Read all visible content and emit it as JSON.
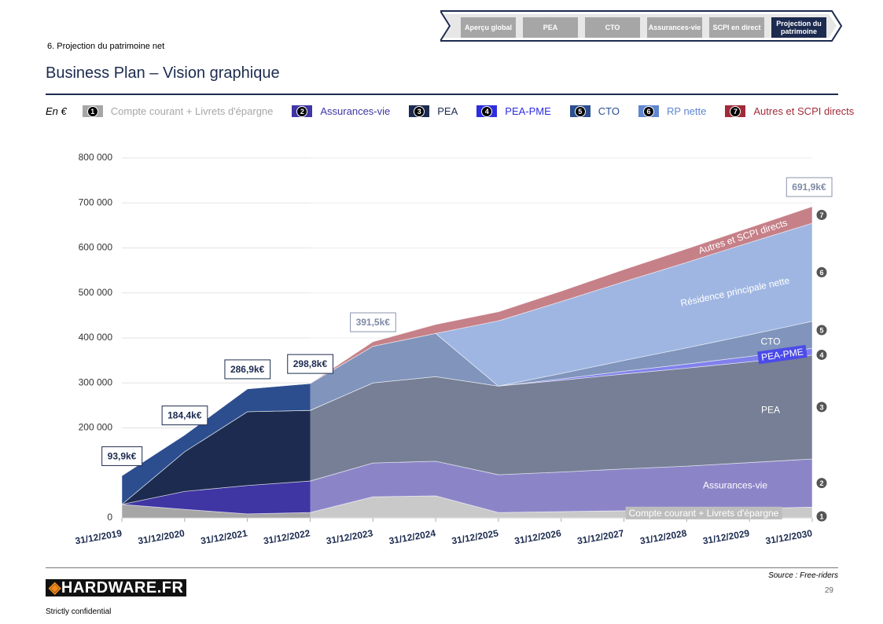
{
  "header": {
    "section": "6. Projection du patrimoine net",
    "title": "Business Plan – Vision graphique",
    "nav": [
      "Aperçu global",
      "PEA",
      "CTO",
      "Assurances-vie",
      "SCPI en direct",
      "Projection du patrimoine"
    ],
    "nav_active": "Projection du patrimoine"
  },
  "chart_data": {
    "type": "stacked_area",
    "unit": "En €",
    "categories": [
      "31/12/2019",
      "31/12/2020",
      "31/12/2021",
      "31/12/2022",
      "31/12/2023",
      "31/12/2024",
      "31/12/2025",
      "31/12/2026",
      "31/12/2027",
      "31/12/2028",
      "31/12/2029",
      "31/12/2030"
    ],
    "projection_start": "31/12/2022",
    "series": [
      {
        "name": "Compte courant + Livrets d'épargne",
        "label": "Compte courant + Livrets d'épargne",
        "badge": "1",
        "color": "#a6a6a6",
        "values": [
          30000,
          19000,
          9000,
          12000,
          47000,
          49000,
          12000,
          14000,
          16000,
          18000,
          21000,
          24000
        ]
      },
      {
        "name": "Assurances-vie",
        "label": "Assurances-vie",
        "badge": "2",
        "color": "#3f35a3",
        "values": [
          0,
          40000,
          63000,
          70000,
          75000,
          77000,
          84000,
          88000,
          93000,
          97000,
          102000,
          107000
        ]
      },
      {
        "name": "PEA",
        "label": "PEA",
        "badge": "3",
        "color": "#1c2b4f",
        "values": [
          0,
          88000,
          164000,
          157000,
          178000,
          188000,
          197000,
          204000,
          211000,
          218000,
          224000,
          231000
        ]
      },
      {
        "name": "PEA-PME",
        "label": "PEA-PME",
        "badge": "4",
        "color": "#2d2de0",
        "values": [
          0,
          0,
          0,
          0,
          0,
          0,
          0,
          3000,
          6000,
          9000,
          12000,
          15000
        ]
      },
      {
        "name": "CTO",
        "label": "CTO",
        "badge": "5",
        "color": "#2c4e8f",
        "values": [
          63900,
          37400,
          50900,
          59800,
          81500,
          96000,
          0,
          12000,
          24000,
          36000,
          48000,
          60000
        ]
      },
      {
        "name": "RP nette",
        "label": "Résidence principale nette",
        "badge": "6",
        "color": "#5f86cf",
        "values": [
          0,
          0,
          0,
          0,
          0,
          0,
          145000,
          160000,
          175000,
          190000,
          205000,
          218000
        ]
      },
      {
        "name": "Autres et SCPI directs",
        "label": "Autres et SCPI directs",
        "badge": "7",
        "color": "#a02c3a",
        "values": [
          0,
          0,
          0,
          0,
          10000,
          20000,
          20000,
          23000,
          27000,
          30000,
          33000,
          36900
        ]
      }
    ],
    "ylim": [
      0,
      800000
    ],
    "yticks": [
      0,
      {
        "value": 200000,
        "label": "200 000"
      },
      {
        "value": 300000,
        "label": "300 000"
      },
      {
        "value": 400000,
        "label": "400 000"
      },
      {
        "value": 500000,
        "label": "500 000"
      },
      {
        "value": 600000,
        "label": "600 000"
      },
      {
        "value": 700000,
        "label": "700 000"
      },
      {
        "value": 800000,
        "label": "800 000"
      }
    ],
    "grid": true,
    "total_labels": [
      {
        "x": "31/12/2019",
        "value": 93900,
        "label": "93,9k€"
      },
      {
        "x": "31/12/2020",
        "value": 184400,
        "label": "184,4k€"
      },
      {
        "x": "31/12/2021",
        "value": 286900,
        "label": "286,9k€"
      },
      {
        "x": "31/12/2022",
        "value": 298800,
        "label": "298,8k€"
      },
      {
        "x": "31/12/2023",
        "value": 391500,
        "label": "391,5k€"
      },
      {
        "x": "31/12/2030",
        "value": 691900,
        "label": "691,9k€"
      }
    ]
  },
  "footer": {
    "source": "Source : Free-riders",
    "page": "29",
    "logo": "HARDWARE.FR",
    "confidential": "Strictly confidential"
  }
}
